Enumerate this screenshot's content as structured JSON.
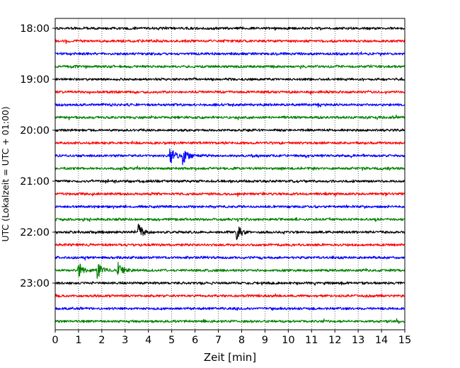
{
  "chart_data": {
    "type": "line",
    "title": "",
    "xlabel": "Zeit  [min]",
    "ylabel": "UTC (Lokalzeit = UTC + 01:00)",
    "xlim": [
      0,
      15
    ],
    "x_ticks": [
      0,
      1,
      2,
      3,
      4,
      5,
      6,
      7,
      8,
      9,
      10,
      11,
      12,
      13,
      14,
      15
    ],
    "grid": "vertical dotted",
    "trace_minutes": 15,
    "first_trace": "18:00",
    "last_trace": "23:45",
    "y_tick_labels": [
      "18:00",
      "19:00",
      "20:00",
      "21:00",
      "22:00",
      "23:00"
    ],
    "trace_colors": [
      "#000000",
      "#ff0000",
      "#0000ff",
      "#008000"
    ],
    "traces": [
      {
        "start": "18:00",
        "color": "#000000"
      },
      {
        "start": "18:15",
        "color": "#ff0000"
      },
      {
        "start": "18:30",
        "color": "#0000ff"
      },
      {
        "start": "18:45",
        "color": "#008000"
      },
      {
        "start": "19:00",
        "color": "#000000"
      },
      {
        "start": "19:15",
        "color": "#ff0000"
      },
      {
        "start": "19:30",
        "color": "#0000ff"
      },
      {
        "start": "19:45",
        "color": "#008000"
      },
      {
        "start": "20:00",
        "color": "#000000"
      },
      {
        "start": "20:15",
        "color": "#ff0000"
      },
      {
        "start": "20:30",
        "color": "#0000ff",
        "events_min": [
          4.95,
          5.5
        ]
      },
      {
        "start": "20:45",
        "color": "#008000"
      },
      {
        "start": "21:00",
        "color": "#000000"
      },
      {
        "start": "21:15",
        "color": "#ff0000"
      },
      {
        "start": "21:30",
        "color": "#0000ff"
      },
      {
        "start": "21:45",
        "color": "#008000"
      },
      {
        "start": "22:00",
        "color": "#000000",
        "events_min": [
          3.6,
          7.8
        ]
      },
      {
        "start": "22:15",
        "color": "#ff0000"
      },
      {
        "start": "22:30",
        "color": "#0000ff"
      },
      {
        "start": "22:45",
        "color": "#008000",
        "events_min": [
          1.0,
          1.85,
          2.7
        ]
      },
      {
        "start": "23:00",
        "color": "#000000"
      },
      {
        "start": "23:15",
        "color": "#ff0000"
      },
      {
        "start": "23:30",
        "color": "#0000ff"
      },
      {
        "start": "23:45",
        "color": "#008000"
      }
    ]
  }
}
